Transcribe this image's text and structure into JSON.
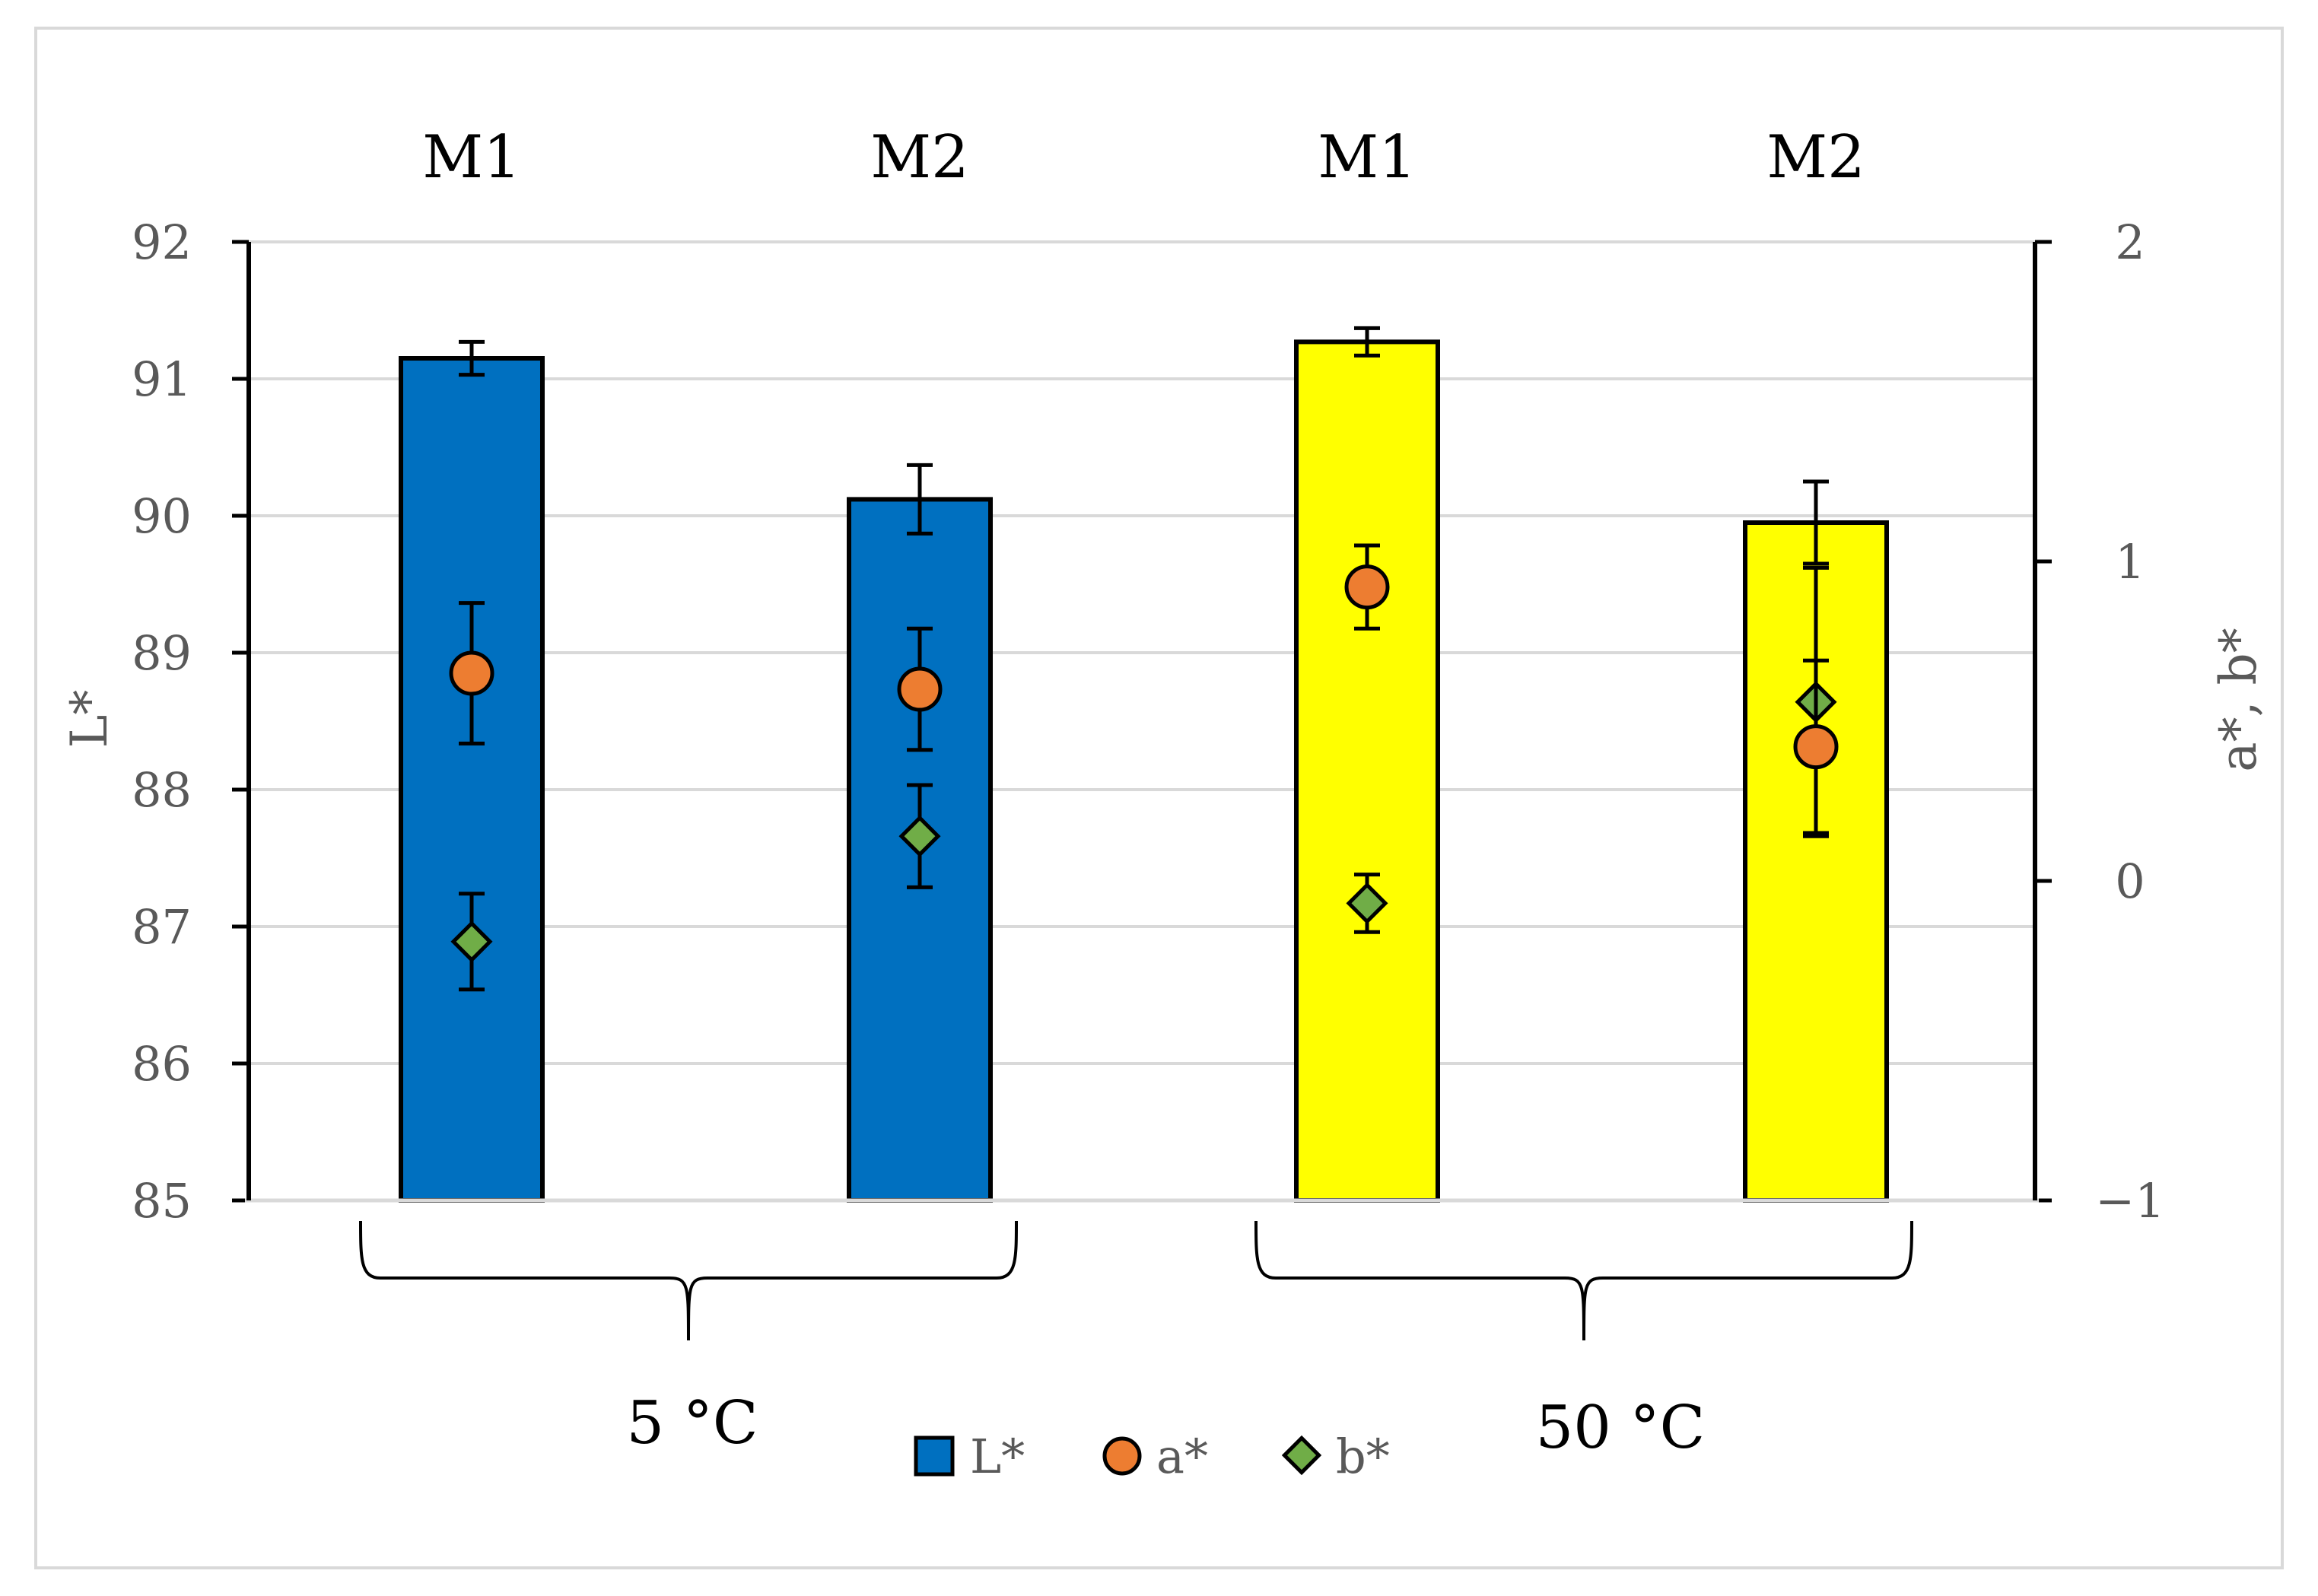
{
  "chart_data": {
    "type": "bar",
    "title": "",
    "categories": [
      "M1",
      "M2",
      "M1",
      "M2"
    ],
    "groups": [
      {
        "label": "5 °C",
        "categories": [
          "M1",
          "M2"
        ]
      },
      {
        "label": "50 °C",
        "categories": [
          "M1",
          "M2"
        ]
      }
    ],
    "bar_colors": [
      "#0070C0",
      "#0070C0",
      "#FFFF00",
      "#FFFF00"
    ],
    "series": [
      {
        "name": "L*",
        "axis": "left",
        "kind": "bar",
        "color": "#0070C0",
        "values": [
          91.15,
          90.12,
          91.27,
          89.95
        ],
        "errors": [
          0.12,
          0.25,
          0.1,
          0.3
        ]
      },
      {
        "name": "a*",
        "axis": "right",
        "kind": "circle",
        "color": "#ED7D31",
        "values": [
          0.65,
          0.6,
          0.92,
          0.42
        ],
        "errors": [
          0.22,
          0.19,
          0.13,
          0.27
        ]
      },
      {
        "name": "b*",
        "axis": "right",
        "kind": "diamond",
        "color": "#70AD47",
        "values": [
          -0.19,
          0.14,
          -0.07,
          0.56
        ],
        "errors": [
          0.15,
          0.16,
          0.09,
          0.42
        ]
      }
    ],
    "y_left": {
      "label": "L*",
      "ylim": [
        85,
        92
      ],
      "ticks": [
        "85",
        "86",
        "87",
        "88",
        "89",
        "90",
        "91",
        "92"
      ]
    },
    "y_right": {
      "label": "a*, b*",
      "ylim": [
        -1,
        2
      ],
      "ticks": [
        "−1",
        "0",
        "1",
        "2"
      ]
    },
    "grid": true,
    "legend": {
      "position": "bottom-center",
      "entries": [
        "L*",
        "a*",
        "b*"
      ]
    }
  }
}
